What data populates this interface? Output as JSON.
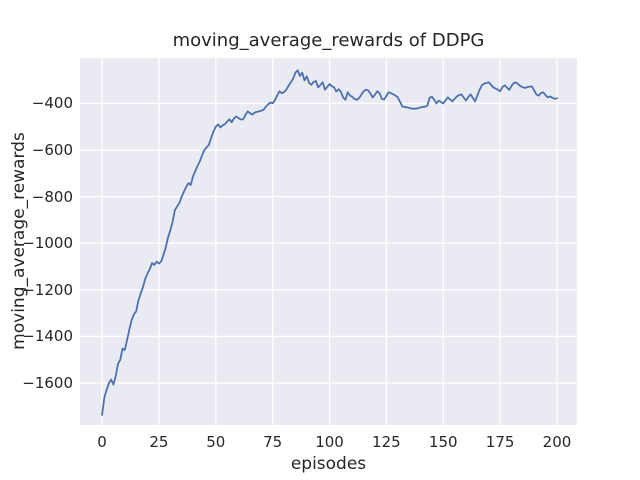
{
  "figure": {
    "title": "moving_average_rewards of DDPG",
    "xlabel": "episodes",
    "ylabel": "moving_average_rewards"
  },
  "chart_data": {
    "type": "line",
    "title": "moving_average_rewards of DDPG",
    "xlabel": "episodes",
    "ylabel": "moving_average_rewards",
    "style": "seaborn-darkgrid",
    "grid": true,
    "legend_position": "none",
    "x_ticks": [
      0,
      25,
      50,
      75,
      100,
      125,
      150,
      175,
      200
    ],
    "y_ticks": [
      -400,
      -600,
      -800,
      -1000,
      -1200,
      -1400,
      -1600
    ],
    "xlim": [
      -9.7,
      208.8
    ],
    "ylim": [
      -1780,
      -205
    ],
    "colors": {
      "line": "#4C72B0",
      "plot_background": "#EAEAF2",
      "grid": "#FFFFFF",
      "text": "#262626",
      "figure_background": "#FFFFFF"
    },
    "series": [
      {
        "name": "moving_average_rewards",
        "x_start": 0,
        "x_step": 1,
        "values": [
          -1737,
          -1662,
          -1630,
          -1600,
          -1585,
          -1607,
          -1570,
          -1518,
          -1500,
          -1452,
          -1458,
          -1415,
          -1370,
          -1330,
          -1305,
          -1292,
          -1245,
          -1215,
          -1188,
          -1152,
          -1130,
          -1110,
          -1085,
          -1093,
          -1079,
          -1087,
          -1078,
          -1050,
          -1018,
          -975,
          -945,
          -908,
          -858,
          -842,
          -827,
          -800,
          -779,
          -758,
          -742,
          -750,
          -712,
          -690,
          -667,
          -648,
          -622,
          -600,
          -588,
          -577,
          -546,
          -520,
          -500,
          -490,
          -503,
          -494,
          -489,
          -478,
          -468,
          -481,
          -464,
          -456,
          -463,
          -469,
          -468,
          -450,
          -434,
          -441,
          -448,
          -440,
          -436,
          -434,
          -431,
          -427,
          -414,
          -404,
          -396,
          -399,
          -386,
          -366,
          -348,
          -356,
          -351,
          -341,
          -324,
          -309,
          -294,
          -268,
          -258,
          -282,
          -268,
          -301,
          -284,
          -312,
          -320,
          -308,
          -304,
          -331,
          -321,
          -309,
          -341,
          -329,
          -317,
          -326,
          -331,
          -349,
          -339,
          -350,
          -375,
          -384,
          -352,
          -366,
          -372,
          -381,
          -384,
          -377,
          -362,
          -348,
          -341,
          -344,
          -358,
          -374,
          -362,
          -348,
          -356,
          -380,
          -383,
          -368,
          -352,
          -356,
          -361,
          -366,
          -374,
          -393,
          -413,
          -415,
          -417,
          -419,
          -422,
          -423,
          -422,
          -421,
          -417,
          -415,
          -414,
          -410,
          -376,
          -371,
          -384,
          -400,
          -388,
          -394,
          -400,
          -387,
          -374,
          -383,
          -391,
          -380,
          -370,
          -364,
          -361,
          -375,
          -387,
          -373,
          -361,
          -376,
          -391,
          -365,
          -341,
          -322,
          -315,
          -312,
          -309,
          -320,
          -331,
          -336,
          -341,
          -348,
          -330,
          -322,
          -332,
          -342,
          -325,
          -312,
          -310,
          -318,
          -326,
          -331,
          -333,
          -330,
          -328,
          -327,
          -345,
          -362,
          -366,
          -355,
          -352,
          -365,
          -374,
          -370,
          -376,
          -380,
          -378
        ]
      }
    ]
  }
}
